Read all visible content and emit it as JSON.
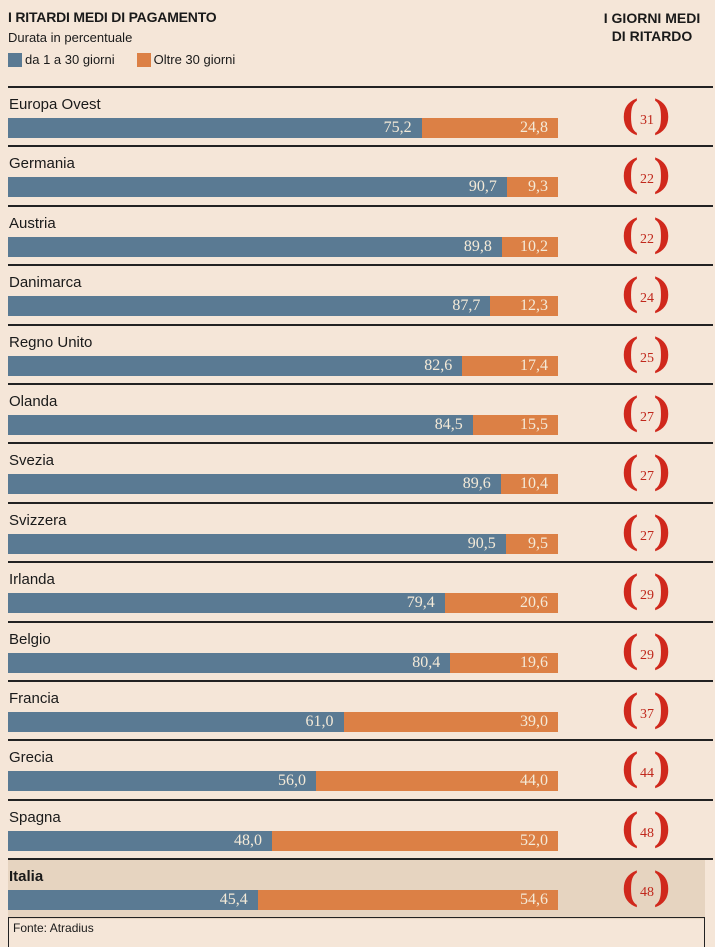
{
  "colors": {
    "short": "#5a7a93",
    "long": "#dc8045",
    "background": "#f5e6d8",
    "highlight": "#e6d4c0",
    "accent": "#d0281c"
  },
  "chart_data": {
    "type": "bar",
    "stacked": true,
    "orientation": "horizontal",
    "title": "I RITARDI MEDI DI PAGAMENTO",
    "subtitle": "Durata in percentuale",
    "right_title_line1": "I GIORNI MEDI",
    "right_title_line2": "DI RITARDO",
    "legend": [
      "da 1 a 30 giorni",
      "Oltre 30 giorni"
    ],
    "xlim": [
      0,
      100
    ],
    "categories": [
      "Europa Ovest",
      "Germania",
      "Austria",
      "Danimarca",
      "Regno Unito",
      "Olanda",
      "Svezia",
      "Svizzera",
      "Irlanda",
      "Belgio",
      "Francia",
      "Grecia",
      "Spagna",
      "Italia"
    ],
    "series": [
      {
        "name": "da 1 a 30 giorni",
        "values": [
          75.2,
          90.7,
          89.8,
          87.7,
          82.6,
          84.5,
          89.6,
          90.5,
          79.4,
          80.4,
          61.0,
          56.0,
          48.0,
          45.4
        ],
        "labels": [
          "75,2",
          "90,7",
          "89,8",
          "87,7",
          "82,6",
          "84,5",
          "89,6",
          "90,5",
          "79,4",
          "80,4",
          "61,0",
          "56,0",
          "48,0",
          "45,4"
        ]
      },
      {
        "name": "Oltre 30 giorni",
        "values": [
          24.8,
          9.3,
          10.2,
          12.3,
          17.4,
          15.5,
          10.4,
          9.5,
          20.6,
          19.6,
          39.0,
          44.0,
          52.0,
          54.6
        ],
        "labels": [
          "24,8",
          "9,3",
          "10,2",
          "12,3",
          "17,4",
          "15,5",
          "10,4",
          "9,5",
          "20,6",
          "19,6",
          "39,0",
          "44,0",
          "52,0",
          "54,6"
        ]
      }
    ],
    "days": [
      "31",
      "22",
      "22",
      "24",
      "25",
      "27",
      "27",
      "27",
      "29",
      "29",
      "37",
      "44",
      "48",
      "48"
    ],
    "highlight": "Italia",
    "source": "Fonte: Atradius"
  }
}
